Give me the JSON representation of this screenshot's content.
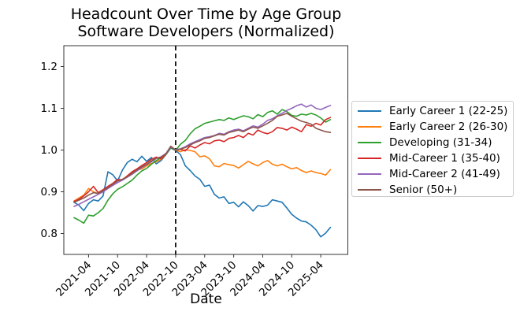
{
  "figure": {
    "background": "#ffffff",
    "text_color": "#000000",
    "spine_color": "#333333",
    "legend_border_color": "#cccccc"
  },
  "chart_data": {
    "type": "line",
    "title": "Headcount Over Time by Age Group",
    "subtitle": "Software Developers (Normalized)",
    "xlabel": "Date",
    "ylabel": "",
    "ylim": [
      0.75,
      1.25
    ],
    "yticks": [
      "0.8",
      "0.9",
      "1.0",
      "1.1",
      "1.2"
    ],
    "xtick_labels": [
      "2021-04",
      "2021-10",
      "2022-04",
      "2022-10",
      "2023-04",
      "2023-10",
      "2024-04",
      "2024-10",
      "2025-04"
    ],
    "grid": false,
    "legend_position": "right",
    "event_line_x": "2022-10",
    "event_line_style": "black dashed vertical",
    "x": [
      "2021-01",
      "2021-02",
      "2021-03",
      "2021-04",
      "2021-05",
      "2021-06",
      "2021-07",
      "2021-08",
      "2021-09",
      "2021-10",
      "2021-11",
      "2021-12",
      "2022-01",
      "2022-02",
      "2022-03",
      "2022-04",
      "2022-05",
      "2022-06",
      "2022-07",
      "2022-08",
      "2022-09",
      "2022-10",
      "2022-11",
      "2022-12",
      "2023-01",
      "2023-02",
      "2023-03",
      "2023-04",
      "2023-05",
      "2023-06",
      "2023-07",
      "2023-08",
      "2023-09",
      "2023-10",
      "2023-11",
      "2023-12",
      "2024-01",
      "2024-02",
      "2024-03",
      "2024-04",
      "2024-05",
      "2024-06",
      "2024-07",
      "2024-08",
      "2024-09",
      "2024-10",
      "2024-11",
      "2024-12",
      "2025-01",
      "2025-02",
      "2025-03",
      "2025-04",
      "2025-05",
      "2025-06"
    ],
    "series": [
      {
        "name": "Early Career 1 (22-25)",
        "color": "#1f77b4",
        "values": [
          0.875,
          0.868,
          0.855,
          0.872,
          0.881,
          0.878,
          0.89,
          0.948,
          0.941,
          0.926,
          0.952,
          0.97,
          0.978,
          0.972,
          0.985,
          0.973,
          0.982,
          0.967,
          0.975,
          0.989,
          1.005,
          0.999,
          0.989,
          0.962,
          0.951,
          0.938,
          0.93,
          0.913,
          0.916,
          0.894,
          0.885,
          0.888,
          0.872,
          0.875,
          0.864,
          0.876,
          0.867,
          0.854,
          0.867,
          0.865,
          0.868,
          0.881,
          0.878,
          0.875,
          0.861,
          0.846,
          0.837,
          0.83,
          0.828,
          0.82,
          0.809,
          0.792,
          0.801,
          0.815
        ]
      },
      {
        "name": "Early Career 2 (26-30)",
        "color": "#ff7f0e",
        "values": [
          0.878,
          0.885,
          0.892,
          0.908,
          0.9,
          0.895,
          0.902,
          0.912,
          0.92,
          0.928,
          0.93,
          0.938,
          0.945,
          0.952,
          0.955,
          0.962,
          0.968,
          0.972,
          0.978,
          0.99,
          1.007,
          1.0,
          0.996,
          1.001,
          0.999,
          0.996,
          0.984,
          0.986,
          0.979,
          0.962,
          0.96,
          0.968,
          0.965,
          0.963,
          0.957,
          0.965,
          0.973,
          0.967,
          0.962,
          0.97,
          0.975,
          0.966,
          0.962,
          0.966,
          0.96,
          0.955,
          0.958,
          0.951,
          0.946,
          0.95,
          0.946,
          0.944,
          0.94,
          0.953
        ]
      },
      {
        "name": "Developing (31-34)",
        "color": "#2ca02c",
        "values": [
          0.838,
          0.832,
          0.825,
          0.844,
          0.842,
          0.85,
          0.86,
          0.88,
          0.895,
          0.906,
          0.912,
          0.92,
          0.928,
          0.94,
          0.95,
          0.956,
          0.966,
          0.975,
          0.982,
          0.99,
          1.007,
          0.999,
          1.014,
          1.023,
          1.039,
          1.051,
          1.057,
          1.064,
          1.067,
          1.07,
          1.073,
          1.071,
          1.077,
          1.073,
          1.078,
          1.082,
          1.08,
          1.075,
          1.085,
          1.08,
          1.09,
          1.094,
          1.086,
          1.097,
          1.092,
          1.083,
          1.081,
          1.086,
          1.084,
          1.088,
          1.084,
          1.077,
          1.067,
          1.073
        ]
      },
      {
        "name": "Mid-Career 1 (35-40)",
        "color": "#d62728",
        "values": [
          0.877,
          0.882,
          0.89,
          0.9,
          0.913,
          0.898,
          0.905,
          0.913,
          0.92,
          0.93,
          0.928,
          0.938,
          0.948,
          0.955,
          0.963,
          0.97,
          0.978,
          0.983,
          0.979,
          0.991,
          1.009,
          1.0,
          1.002,
          0.998,
          1.01,
          1.005,
          1.012,
          1.018,
          1.015,
          1.022,
          1.024,
          1.02,
          1.028,
          1.03,
          1.035,
          1.03,
          1.04,
          1.036,
          1.048,
          1.042,
          1.039,
          1.044,
          1.054,
          1.052,
          1.048,
          1.055,
          1.05,
          1.044,
          1.061,
          1.057,
          1.064,
          1.06,
          1.073,
          1.078
        ]
      },
      {
        "name": "Mid-Career 2 (41-49)",
        "color": "#9467bd",
        "values": [
          0.865,
          0.87,
          0.876,
          0.882,
          0.888,
          0.894,
          0.9,
          0.908,
          0.915,
          0.922,
          0.928,
          0.935,
          0.942,
          0.95,
          0.958,
          0.965,
          0.972,
          0.98,
          0.984,
          0.992,
          1.008,
          1.001,
          1.003,
          1.008,
          1.015,
          1.02,
          1.025,
          1.03,
          1.032,
          1.035,
          1.04,
          1.038,
          1.044,
          1.048,
          1.05,
          1.046,
          1.052,
          1.058,
          1.055,
          1.062,
          1.071,
          1.075,
          1.082,
          1.088,
          1.095,
          1.1,
          1.106,
          1.11,
          1.103,
          1.108,
          1.1,
          1.097,
          1.102,
          1.107
        ]
      },
      {
        "name": "Senior (50+)",
        "color": "#8c564b",
        "values": [
          0.875,
          0.88,
          0.885,
          0.892,
          0.898,
          0.896,
          0.903,
          0.91,
          0.918,
          0.926,
          0.93,
          0.936,
          0.944,
          0.952,
          0.96,
          0.966,
          0.974,
          0.98,
          0.983,
          0.991,
          1.009,
          1.0,
          1.002,
          1.006,
          1.012,
          1.018,
          1.022,
          1.028,
          1.03,
          1.034,
          1.038,
          1.036,
          1.042,
          1.045,
          1.048,
          1.044,
          1.05,
          1.055,
          1.052,
          1.058,
          1.064,
          1.071,
          1.081,
          1.084,
          1.088,
          1.081,
          1.075,
          1.069,
          1.066,
          1.062,
          1.052,
          1.048,
          1.044,
          1.042
        ]
      }
    ]
  }
}
